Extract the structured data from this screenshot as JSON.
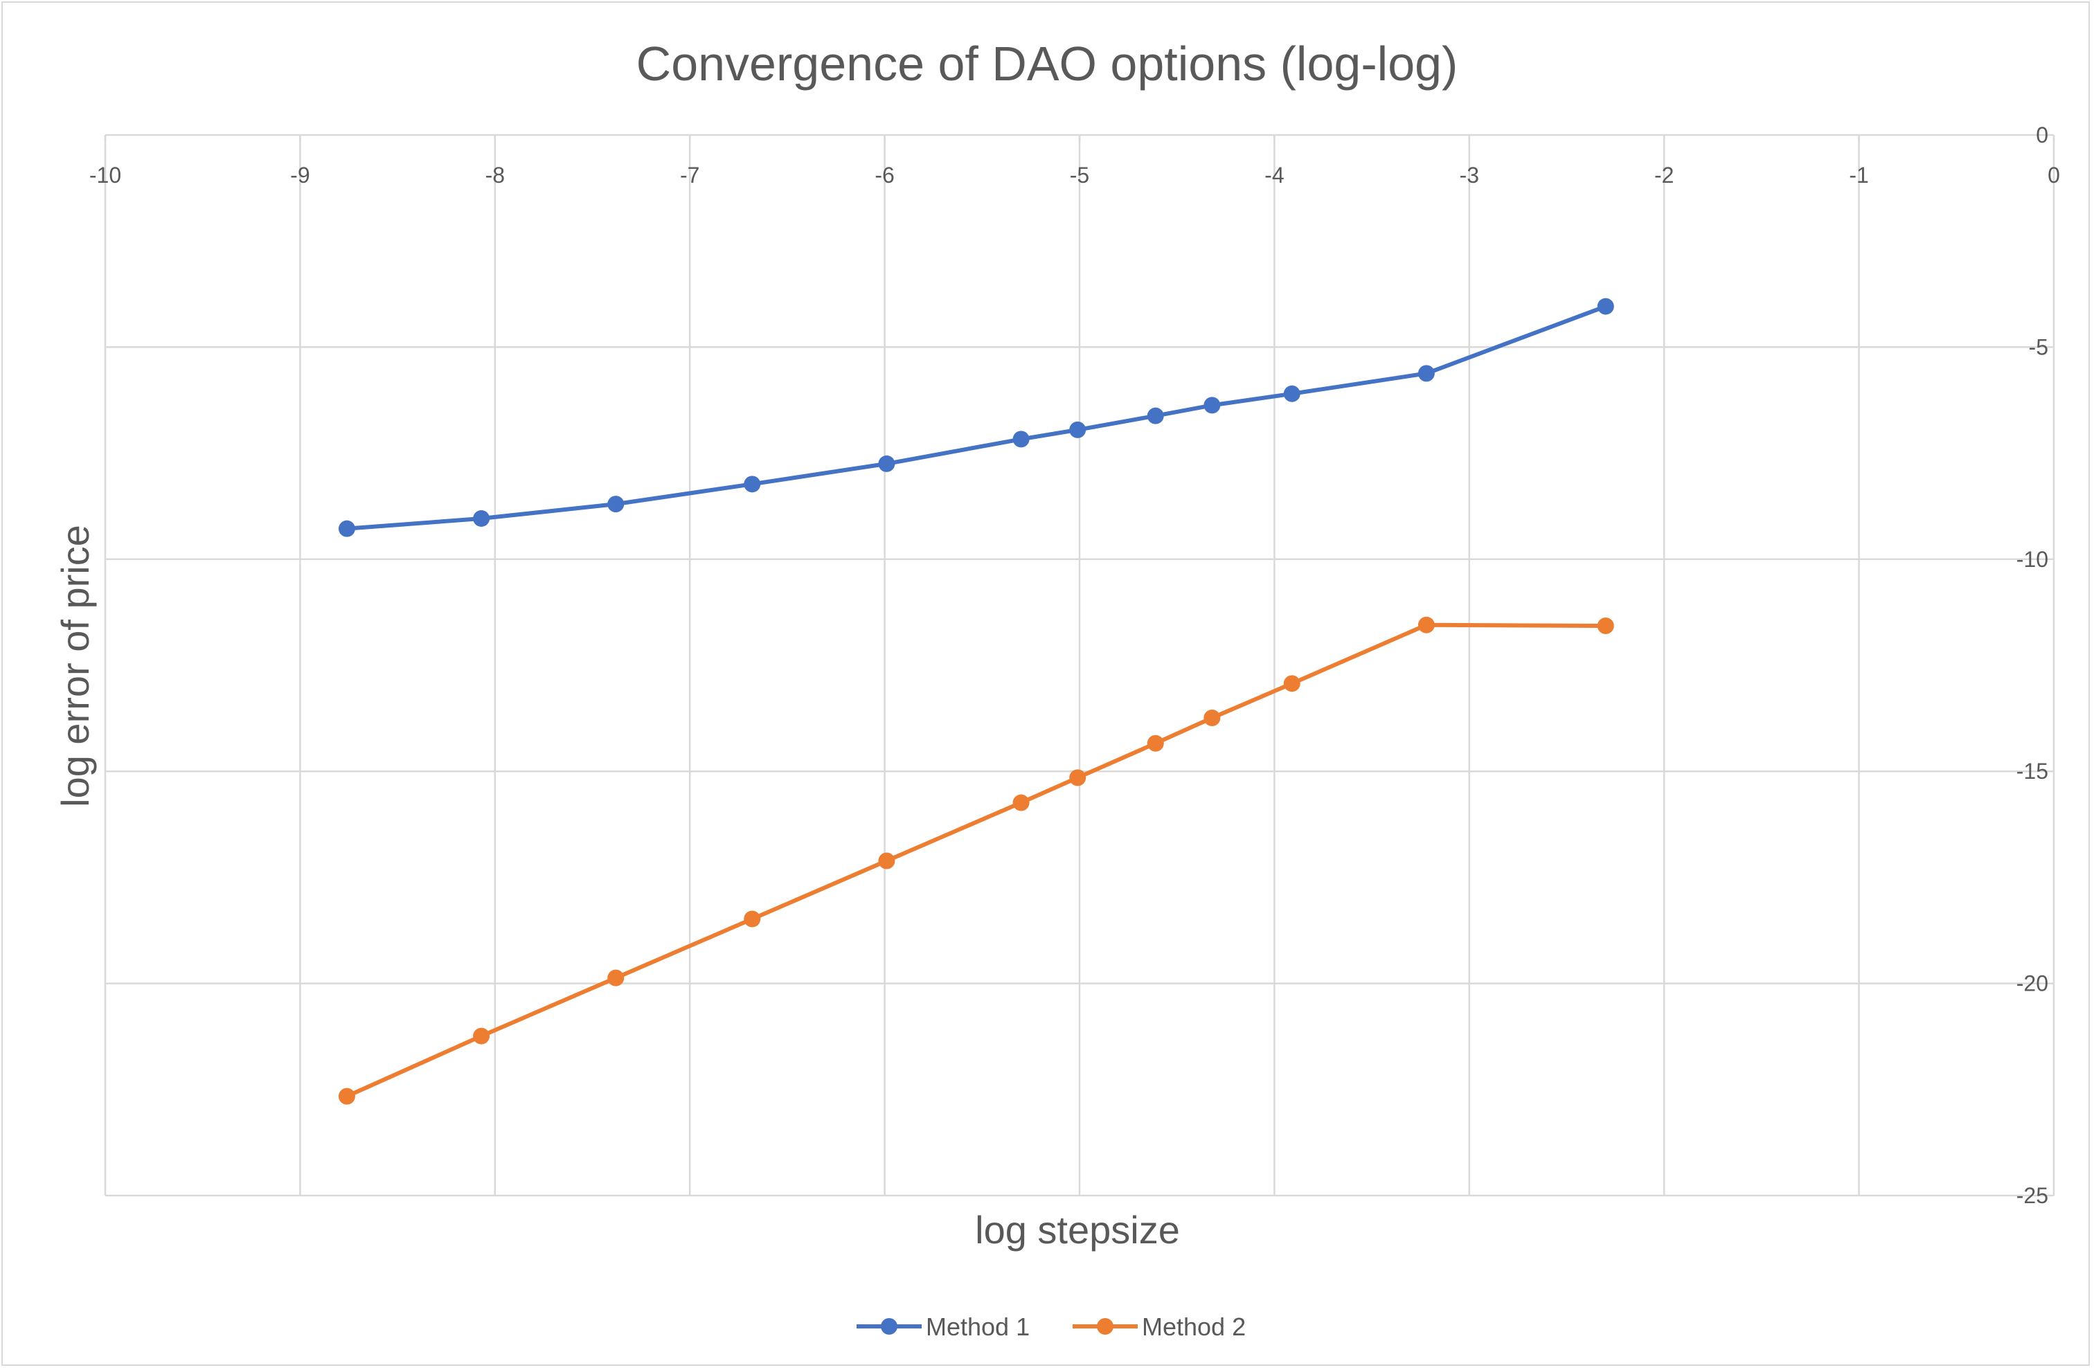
{
  "chart_data": {
    "type": "line",
    "title": "Convergence of DAO options (log-log)",
    "xlabel": "log stepsize",
    "ylabel": "log error of price",
    "xlim": [
      -10,
      0
    ],
    "ylim": [
      -25,
      0
    ],
    "x_ticks": [
      "-10",
      "-9",
      "-8",
      "-7",
      "-6",
      "-5",
      "-4",
      "-3",
      "-2",
      "-1",
      "0"
    ],
    "y_ticks": [
      "0",
      "-5",
      "-10",
      "-15",
      "-20",
      "-25"
    ],
    "x_axis_position": "top",
    "y_axis_position": "right",
    "grid": true,
    "legend_position": "bottom",
    "series": [
      {
        "name": "Method 1",
        "color": "#4472c4",
        "x": [
          -8.76,
          -8.07,
          -7.38,
          -6.68,
          -5.99,
          -5.3,
          -5.01,
          -4.61,
          -4.32,
          -3.91,
          -3.22,
          -2.3
        ],
        "y": [
          -9.28,
          -9.04,
          -8.7,
          -8.23,
          -7.75,
          -7.17,
          -6.95,
          -6.62,
          -6.37,
          -6.1,
          -5.62,
          -4.04
        ]
      },
      {
        "name": "Method 2",
        "color": "#ed7d31",
        "x": [
          -8.76,
          -8.07,
          -7.38,
          -6.68,
          -5.99,
          -5.3,
          -5.01,
          -4.61,
          -4.32,
          -3.91,
          -3.22,
          -2.3
        ],
        "y": [
          -22.66,
          -21.24,
          -19.87,
          -18.48,
          -17.11,
          -15.74,
          -15.15,
          -14.34,
          -13.74,
          -12.93,
          -11.55,
          -11.57
        ]
      }
    ]
  }
}
